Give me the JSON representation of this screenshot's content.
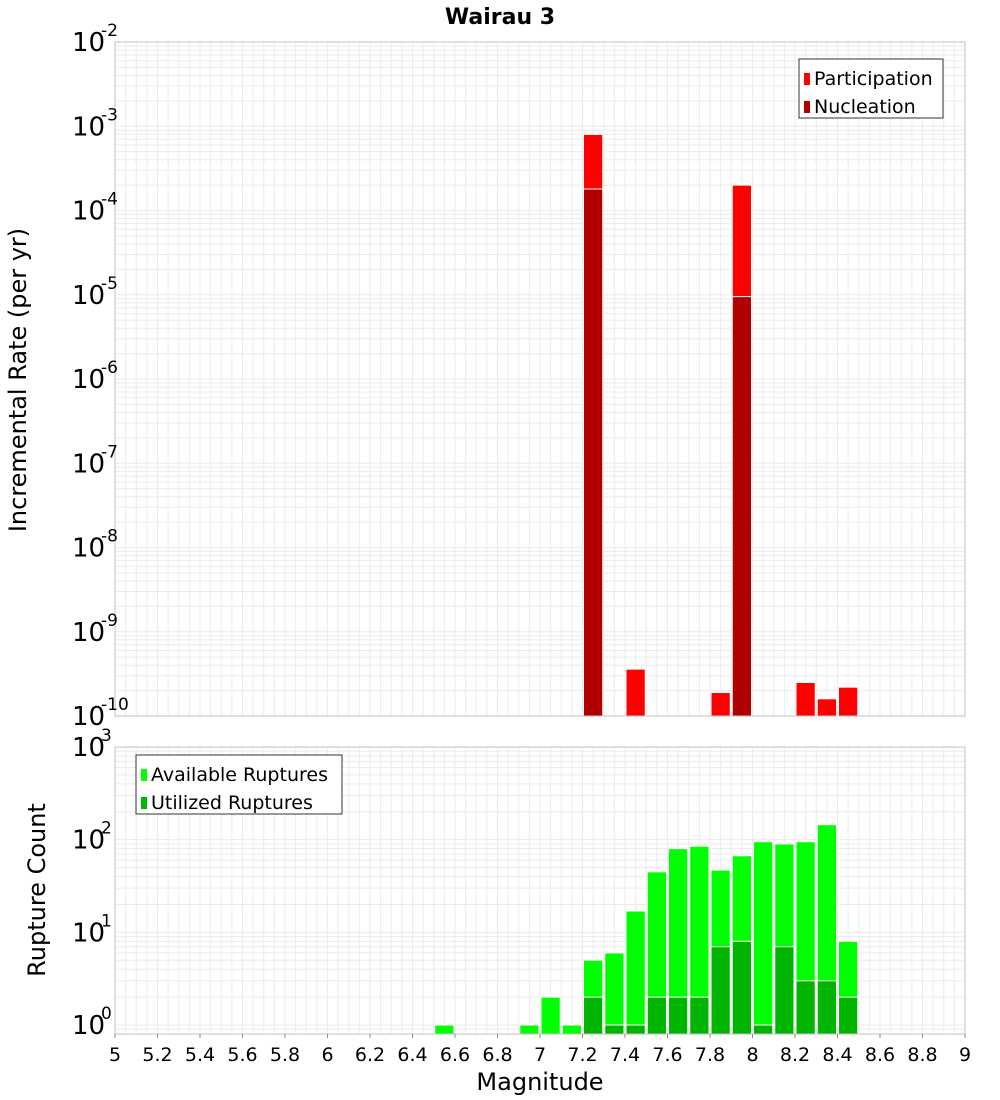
{
  "title": "Wairau 3",
  "colors": {
    "participation": "#ff0000",
    "nucleation": "#b20000",
    "available": "#00ff00",
    "utilized": "#00b400",
    "grid": "#ebebeb",
    "frame": "#c0c0c0",
    "bar_outline": "#ffffff"
  },
  "chart_data": [
    {
      "type": "bar",
      "panel": "top",
      "title": "Wairau 3",
      "xlabel": "",
      "ylabel": "Incremental Rate (per yr)",
      "yscale": "log",
      "ylim": [
        1e-10,
        0.01
      ],
      "xlim": [
        5,
        9
      ],
      "bin_width": 0.1,
      "legend": {
        "placement": "top-right",
        "entries": [
          "Participation",
          "Nucleation"
        ]
      },
      "grid": true,
      "ytick_labels": [
        {
          "base": "10",
          "exp": "-2",
          "value": 0.01
        },
        {
          "base": "10",
          "exp": "-3",
          "value": 0.001
        },
        {
          "base": "10",
          "exp": "-4",
          "value": 0.0001
        },
        {
          "base": "10",
          "exp": "-5",
          "value": 1e-05
        },
        {
          "base": "10",
          "exp": "-6",
          "value": 1e-06
        },
        {
          "base": "10",
          "exp": "-7",
          "value": 1e-07
        },
        {
          "base": "10",
          "exp": "-8",
          "value": 1e-08
        },
        {
          "base": "10",
          "exp": "-9",
          "value": 1e-09
        },
        {
          "base": "10",
          "exp": "-10",
          "value": 1e-10
        }
      ],
      "series": [
        {
          "name": "Participation",
          "color": "#ff0000",
          "points": [
            {
              "x": 7.25,
              "y": 0.0008
            },
            {
              "x": 7.45,
              "y": 3.6e-10
            },
            {
              "x": 7.85,
              "y": 1.9e-10
            },
            {
              "x": 7.95,
              "y": 0.0002
            },
            {
              "x": 8.25,
              "y": 2.5e-10
            },
            {
              "x": 8.35,
              "y": 1.6e-10
            },
            {
              "x": 8.45,
              "y": 2.2e-10
            }
          ]
        },
        {
          "name": "Nucleation",
          "color": "#b20000",
          "points": [
            {
              "x": 7.25,
              "y": 0.00018
            },
            {
              "x": 7.95,
              "y": 9.5e-06
            }
          ]
        }
      ]
    },
    {
      "type": "bar",
      "panel": "bottom",
      "xlabel": "Magnitude",
      "ylabel": "Rupture Count",
      "yscale": "log",
      "ylim": [
        0.8,
        1000
      ],
      "xlim": [
        5,
        9
      ],
      "bin_width": 0.1,
      "legend": {
        "placement": "top-left",
        "entries": [
          "Available Ruptures",
          "Utilized Ruptures"
        ]
      },
      "grid": true,
      "ytick_labels": [
        {
          "base": "10",
          "exp": "3",
          "value": 1000
        },
        {
          "base": "10",
          "exp": "2",
          "value": 100
        },
        {
          "base": "10",
          "exp": "1",
          "value": 10
        },
        {
          "base": "10",
          "exp": "0",
          "value": 1
        }
      ],
      "xtick_labels": [
        "5",
        "5.2",
        "5.4",
        "5.6",
        "5.8",
        "6",
        "6.2",
        "6.4",
        "6.6",
        "6.8",
        "7",
        "7.2",
        "7.4",
        "7.6",
        "7.8",
        "8",
        "8.2",
        "8.4",
        "8.6",
        "8.8",
        "9"
      ],
      "xtick_values": [
        5,
        5.2,
        5.4,
        5.6,
        5.8,
        6,
        6.2,
        6.4,
        6.6,
        6.8,
        7,
        7.2,
        7.4,
        7.6,
        7.8,
        8,
        8.2,
        8.4,
        8.6,
        8.8,
        9
      ],
      "series": [
        {
          "name": "Available Ruptures",
          "color": "#00ff00",
          "points": [
            {
              "x": 6.55,
              "y": 1
            },
            {
              "x": 6.95,
              "y": 1
            },
            {
              "x": 7.05,
              "y": 2
            },
            {
              "x": 7.15,
              "y": 1
            },
            {
              "x": 7.25,
              "y": 5
            },
            {
              "x": 7.35,
              "y": 6
            },
            {
              "x": 7.45,
              "y": 17
            },
            {
              "x": 7.55,
              "y": 45
            },
            {
              "x": 7.65,
              "y": 80
            },
            {
              "x": 7.75,
              "y": 85
            },
            {
              "x": 7.85,
              "y": 47
            },
            {
              "x": 7.95,
              "y": 67
            },
            {
              "x": 8.05,
              "y": 95
            },
            {
              "x": 8.15,
              "y": 90
            },
            {
              "x": 8.25,
              "y": 95
            },
            {
              "x": 8.35,
              "y": 145
            },
            {
              "x": 8.45,
              "y": 8
            }
          ]
        },
        {
          "name": "Utilized Ruptures",
          "color": "#00b400",
          "points": [
            {
              "x": 7.25,
              "y": 2
            },
            {
              "x": 7.35,
              "y": 1
            },
            {
              "x": 7.45,
              "y": 1
            },
            {
              "x": 7.55,
              "y": 2
            },
            {
              "x": 7.65,
              "y": 2
            },
            {
              "x": 7.75,
              "y": 2
            },
            {
              "x": 7.85,
              "y": 7
            },
            {
              "x": 7.95,
              "y": 8
            },
            {
              "x": 8.05,
              "y": 1
            },
            {
              "x": 8.15,
              "y": 7
            },
            {
              "x": 8.25,
              "y": 3
            },
            {
              "x": 8.35,
              "y": 3
            },
            {
              "x": 8.45,
              "y": 2
            }
          ]
        }
      ]
    }
  ]
}
